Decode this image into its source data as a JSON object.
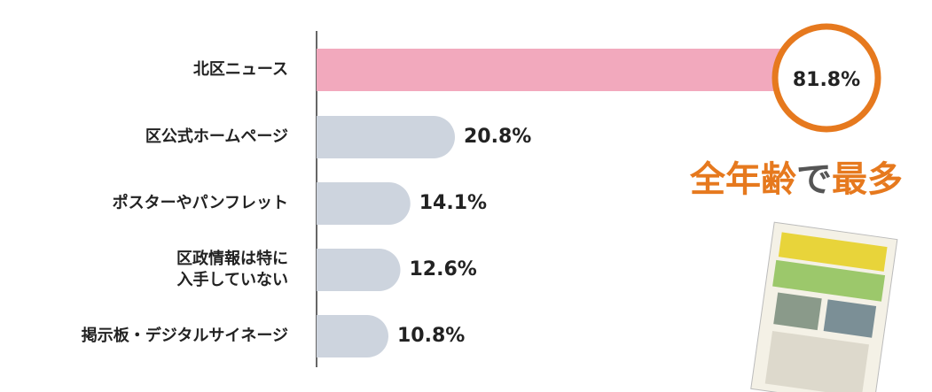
{
  "chart_data": {
    "type": "bar",
    "orientation": "horizontal",
    "categories": [
      "北区ニュース",
      "区公式ホームページ",
      "ポスターやパンフレット",
      "区政情報は特に\n入手していない",
      "掲示板・デジタルサイネージ"
    ],
    "values": [
      81.8,
      20.8,
      14.1,
      12.6,
      10.8
    ],
    "value_labels": [
      "81.8%",
      "20.8%",
      "14.1%",
      "12.6%",
      "10.8%"
    ],
    "colors": [
      "#f2a9bd",
      "#cdd4de",
      "#cdd4de",
      "#cdd4de",
      "#cdd4de"
    ],
    "highlight_color": "#e6791e",
    "annotation": [
      {
        "text": "全年齢",
        "color": "#e6791e"
      },
      {
        "text": "で",
        "color": "#555555"
      },
      {
        "text": "最多",
        "color": "#e6791e"
      }
    ]
  }
}
